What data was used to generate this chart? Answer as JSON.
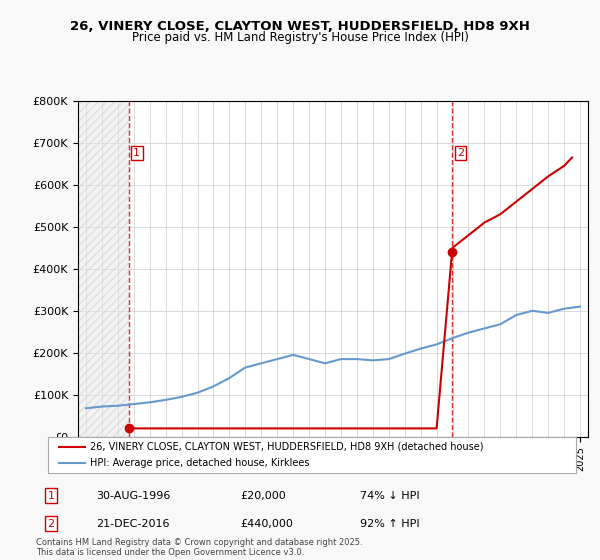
{
  "title_line1": "26, VINERY CLOSE, CLAYTON WEST, HUDDERSFIELD, HD8 9XH",
  "title_line2": "Price paid vs. HM Land Registry's House Price Index (HPI)",
  "legend_line1": "26, VINERY CLOSE, CLAYTON WEST, HUDDERSFIELD, HD8 9XH (detached house)",
  "legend_line2": "HPI: Average price, detached house, Kirklees",
  "annotation1_label": "1",
  "annotation1_date": "30-AUG-1996",
  "annotation1_price": "£20,000",
  "annotation1_hpi": "74% ↓ HPI",
  "annotation2_label": "2",
  "annotation2_date": "21-DEC-2016",
  "annotation2_price": "£440,000",
  "annotation2_hpi": "92% ↑ HPI",
  "footnote": "Contains HM Land Registry data © Crown copyright and database right 2025.\nThis data is licensed under the Open Government Licence v3.0.",
  "transaction1_year": 1996.67,
  "transaction1_price": 20000,
  "transaction2_year": 2016.97,
  "transaction2_price": 440000,
  "hpi_years": [
    1994,
    1995,
    1996,
    1997,
    1998,
    1999,
    2000,
    2001,
    2002,
    2003,
    2004,
    2005,
    2006,
    2007,
    2008,
    2009,
    2010,
    2011,
    2012,
    2013,
    2014,
    2015,
    2016,
    2017,
    2018,
    2019,
    2020,
    2021,
    2022,
    2023,
    2024,
    2025
  ],
  "hpi_values": [
    68000,
    72000,
    74000,
    78000,
    82000,
    88000,
    95000,
    105000,
    120000,
    140000,
    165000,
    175000,
    185000,
    195000,
    185000,
    175000,
    185000,
    185000,
    182000,
    185000,
    198000,
    210000,
    220000,
    235000,
    248000,
    258000,
    268000,
    290000,
    300000,
    295000,
    305000,
    310000
  ],
  "price_paid_years": [
    1994,
    1995,
    1996,
    1996.67,
    1997,
    1998,
    1999,
    2000,
    2001,
    2002,
    2003,
    2004,
    2005,
    2006,
    2007,
    2008,
    2009,
    2010,
    2011,
    2012,
    2013,
    2014,
    2015,
    2016,
    2016.97,
    2017,
    2018,
    2019,
    2020,
    2021,
    2022,
    2023,
    2024,
    2024.5
  ],
  "price_paid_values": [
    null,
    null,
    null,
    20000,
    20000,
    20000,
    20000,
    20000,
    20000,
    20000,
    20000,
    20000,
    20000,
    20000,
    20000,
    20000,
    20000,
    20000,
    20000,
    20000,
    20000,
    20000,
    20000,
    20000,
    440000,
    450000,
    480000,
    510000,
    530000,
    560000,
    590000,
    620000,
    645000,
    665000
  ],
  "ylim_max": 800000,
  "xlim_min": 1993.5,
  "xlim_max": 2025.5,
  "bg_color": "#f0f0f0",
  "plot_bg_color": "#ffffff",
  "red_color": "#cc0000",
  "blue_color": "#6699cc",
  "hatch_color": "#d0d0d0"
}
